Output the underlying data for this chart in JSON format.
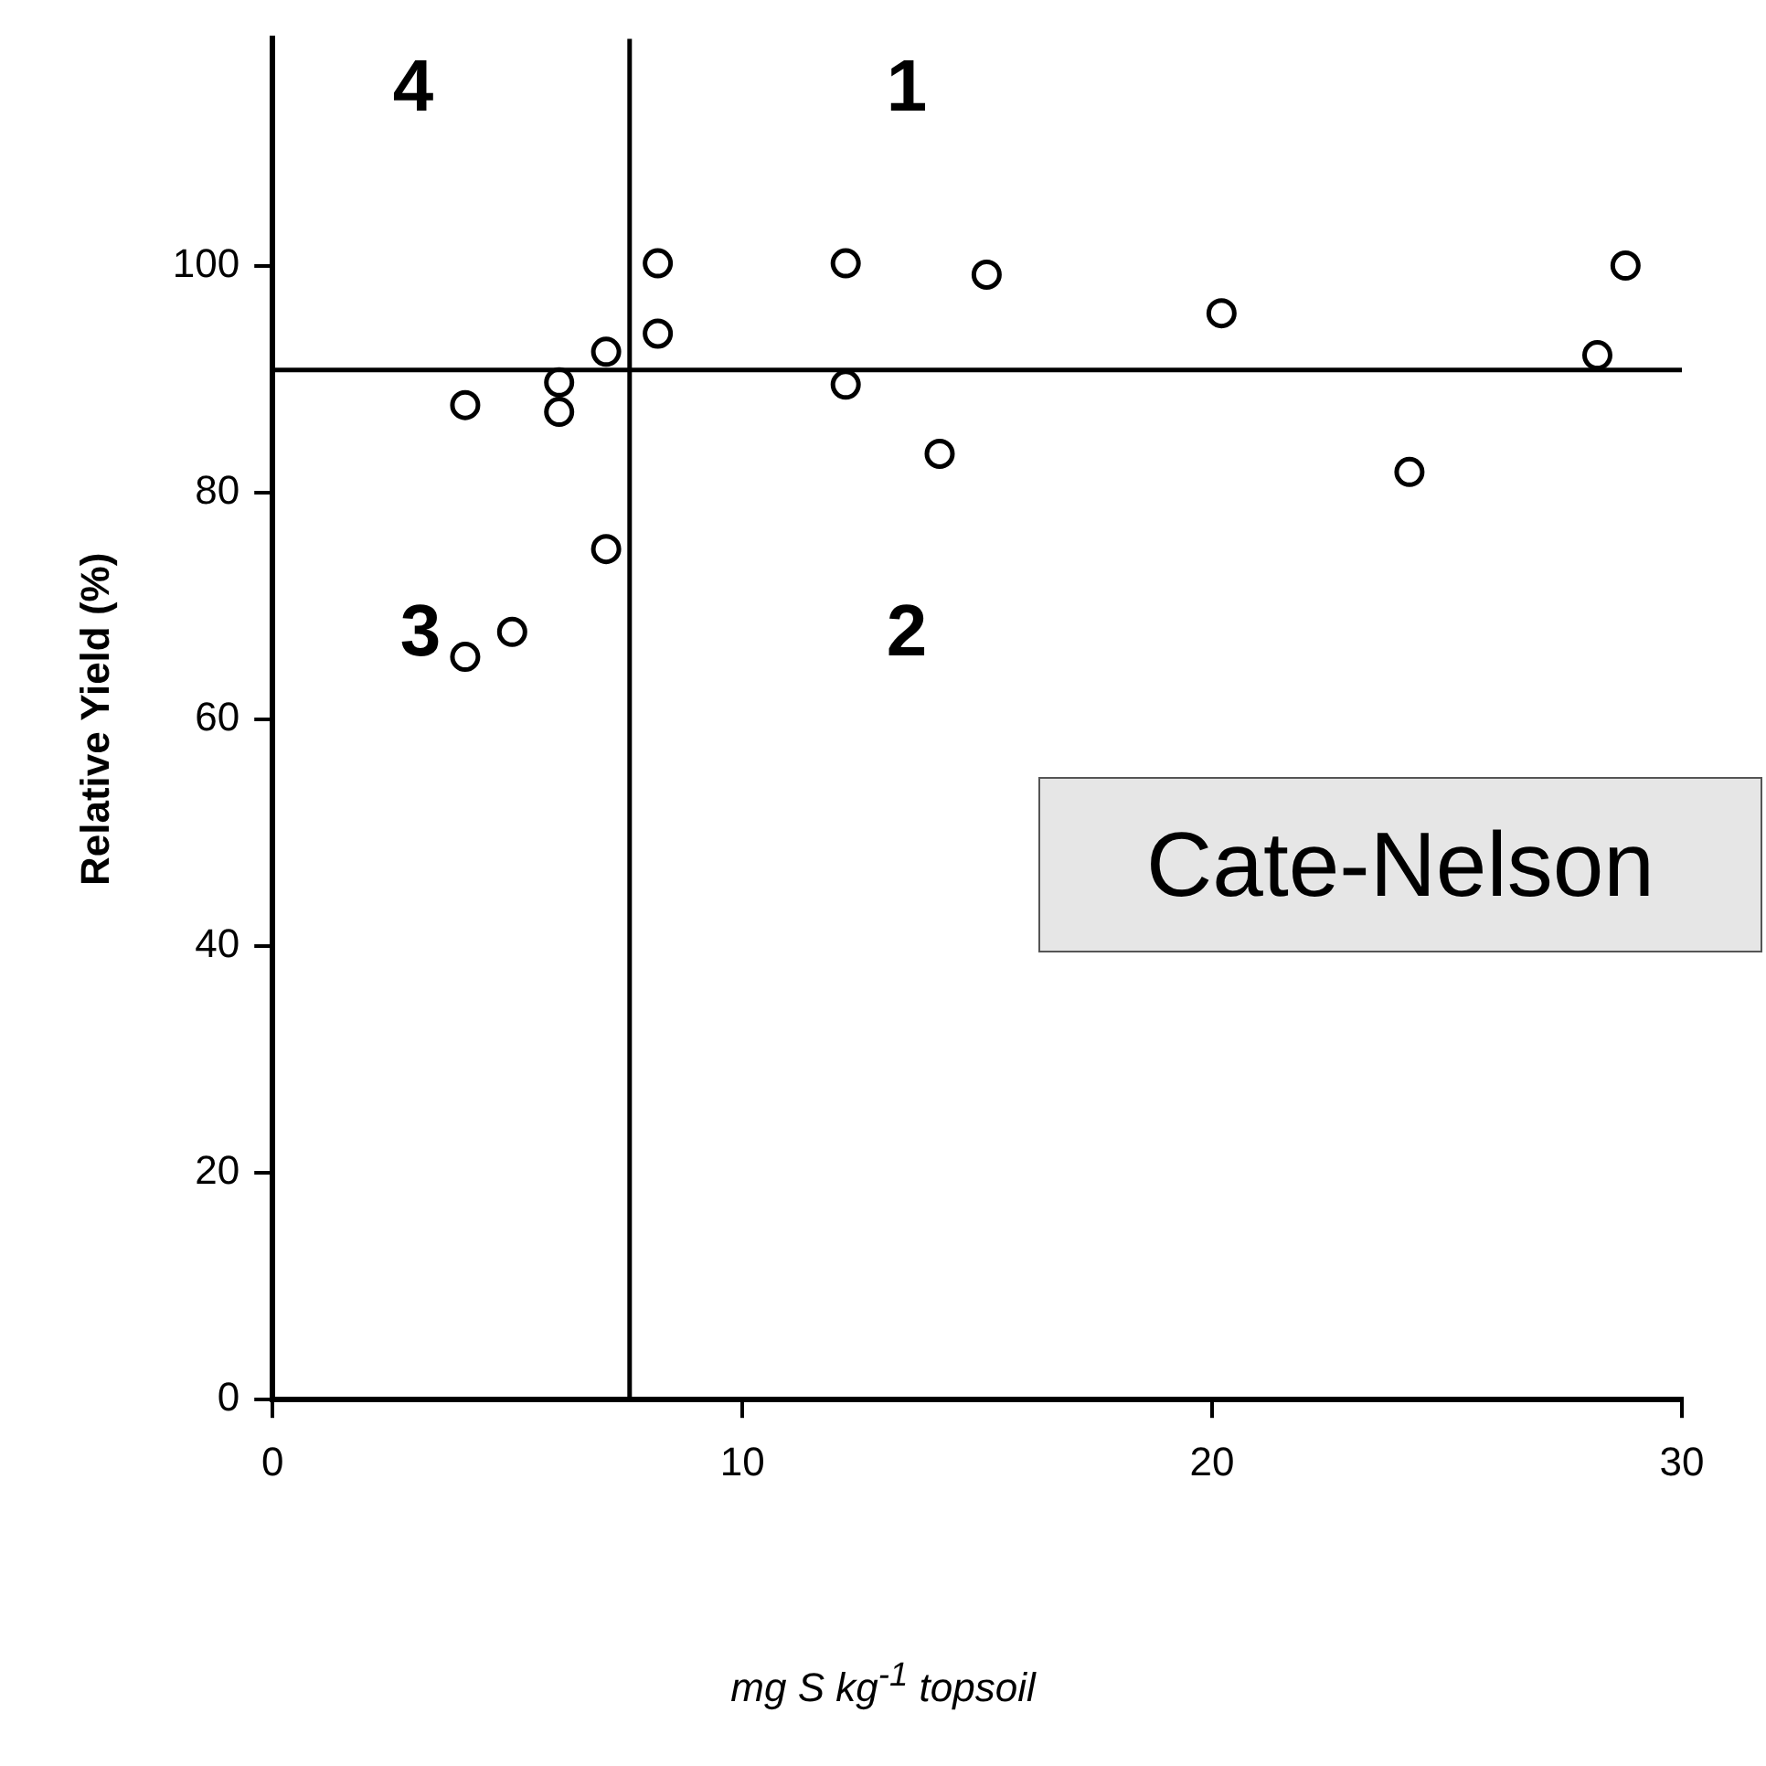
{
  "chart_data": {
    "type": "scatter",
    "xlabel": "mg S kg$^{-1}$ topsoil",
    "ylabel": "Relative Yield (%)",
    "x": [
      4.1,
      4.1,
      5.1,
      6.1,
      6.1,
      7.1,
      7.1,
      8.2,
      8.2,
      12.2,
      12.2,
      14.2,
      15.2,
      20.2,
      24.2,
      28.2,
      28.8
    ],
    "series": [
      {
        "color": "#000000",
        "values": [
          87.7,
          65.5,
          67.7,
          89.7,
          87.1,
          92.4,
          75,
          100.2,
          94,
          100.2,
          89.5,
          83.4,
          99.2,
          95.8,
          81.8,
          92.1,
          100
        ]
      }
    ],
    "xlim": [
      0,
      30
    ],
    "xticks": [
      0,
      10,
      20,
      30
    ],
    "ylim": [
      0,
      120
    ],
    "yticks": [
      0,
      20,
      40,
      60,
      80,
      100
    ],
    "marker": "circle",
    "grid": false,
    "legend": false,
    "ref_lines": [
      {
        "axis": "y",
        "value": 90.8,
        "color": "#000000"
      },
      {
        "axis": "x",
        "value": 7.6,
        "color": "#000000"
      }
    ],
    "annotations": [
      "1",
      "2",
      "3",
      "4",
      "Cate-Nelson"
    ]
  }
}
